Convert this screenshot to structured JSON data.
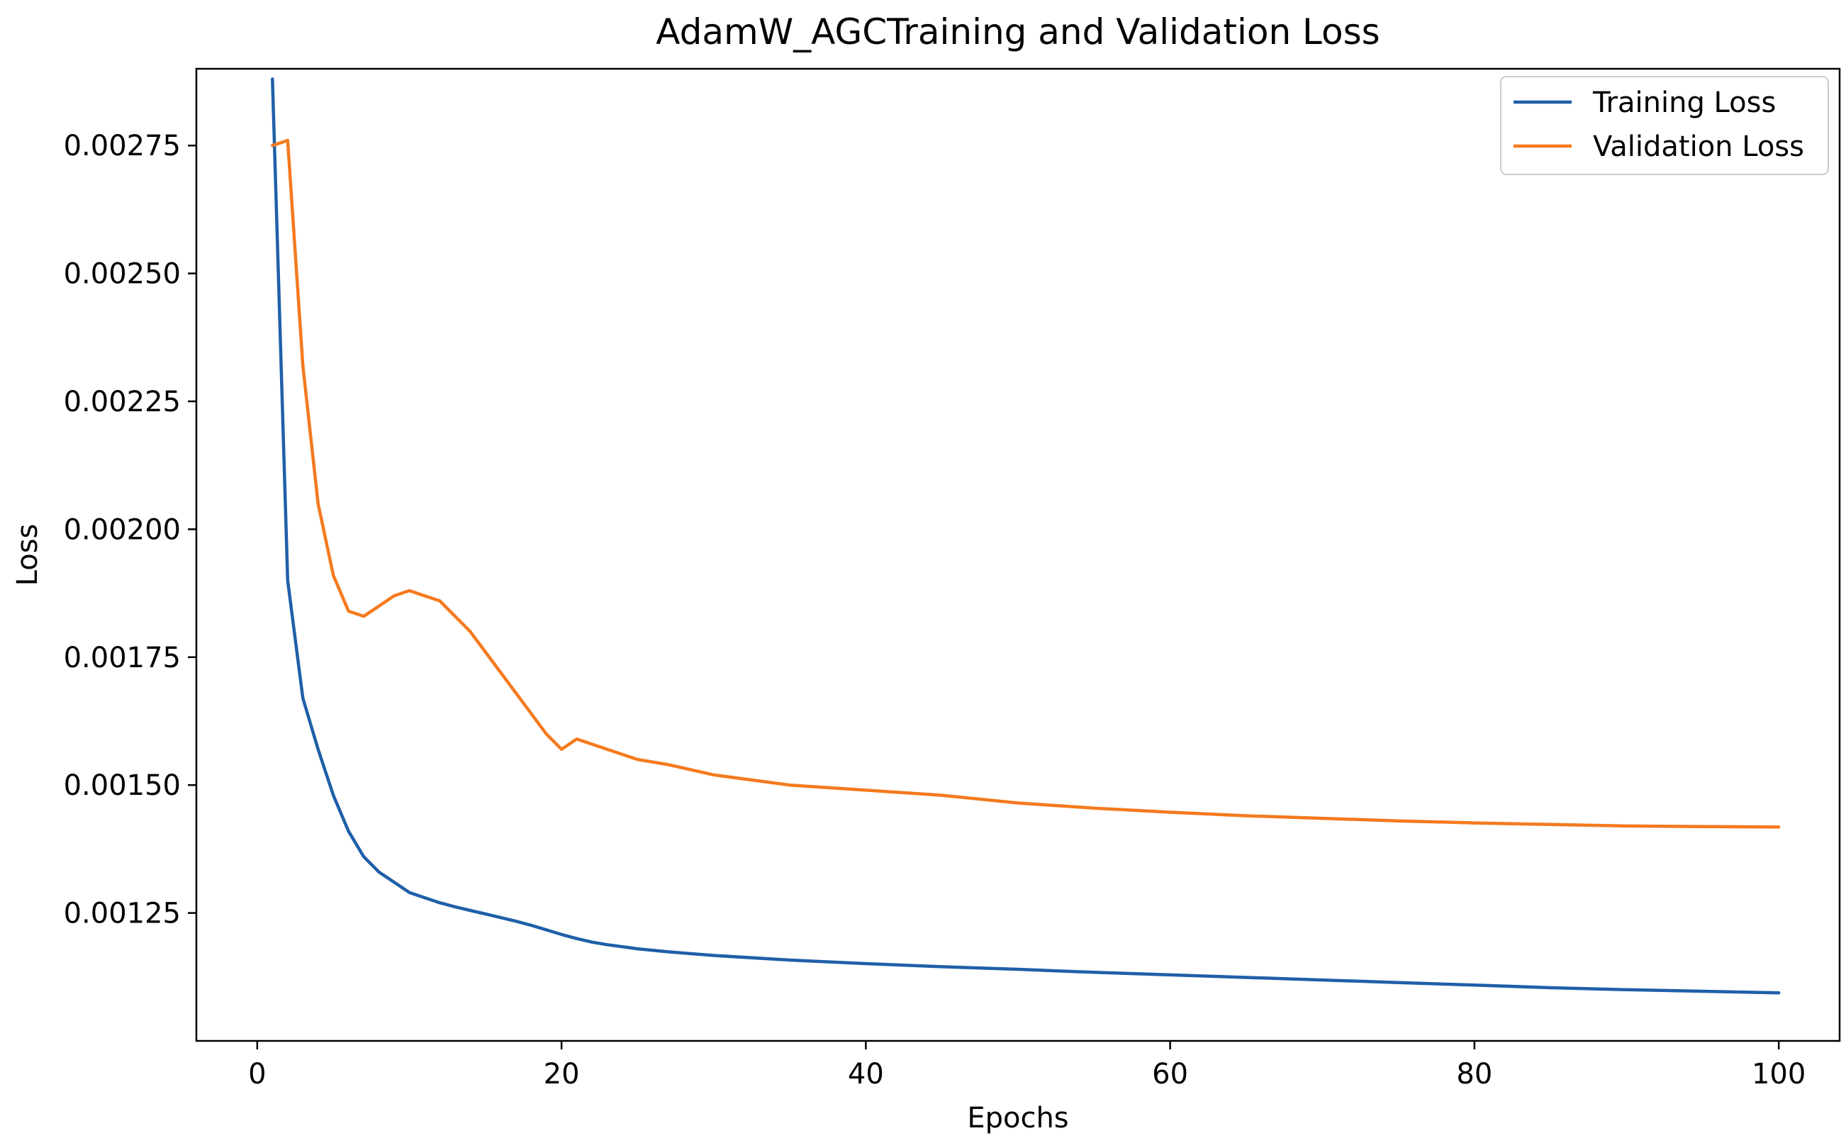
{
  "chart_data": {
    "type": "line",
    "title": "AdamW_AGCTraining and Validation Loss",
    "xlabel": "Epochs",
    "ylabel": "Loss",
    "xlim": [
      -4,
      104
    ],
    "ylim": [
      0.001,
      0.0029
    ],
    "xticks": [
      0,
      20,
      40,
      60,
      80,
      100
    ],
    "xtick_labels": [
      "0",
      "20",
      "40",
      "60",
      "80",
      "100"
    ],
    "yticks": [
      0.00125,
      0.0015,
      0.00175,
      0.002,
      0.00225,
      0.0025,
      0.00275
    ],
    "ytick_labels": [
      "0.00125",
      "0.00150",
      "0.00175",
      "0.00200",
      "0.00225",
      "0.00250",
      "0.00275"
    ],
    "grid": false,
    "legend_position": "top-right",
    "series": [
      {
        "name": "Training Loss",
        "color": "#1f5fa8",
        "x": [
          1,
          2,
          3,
          4,
          5,
          6,
          7,
          8,
          9,
          10,
          11,
          12,
          13,
          14,
          15,
          16,
          17,
          18,
          19,
          20,
          21,
          22,
          23,
          25,
          27,
          30,
          35,
          40,
          45,
          50,
          55,
          60,
          65,
          70,
          75,
          80,
          85,
          90,
          95,
          100
        ],
        "values": [
          0.00288,
          0.0019,
          0.00167,
          0.00157,
          0.00148,
          0.00141,
          0.00136,
          0.00133,
          0.00131,
          0.00129,
          0.00128,
          0.00127,
          0.001262,
          0.001255,
          0.001248,
          0.001241,
          0.001234,
          0.001226,
          0.001217,
          0.001208,
          0.0012,
          0.001193,
          0.001188,
          0.00118,
          0.001174,
          0.001167,
          0.001158,
          0.001151,
          0.001145,
          0.00114,
          0.001134,
          0.001129,
          0.001124,
          0.001119,
          0.001114,
          0.001109,
          0.001104,
          0.0011,
          0.001097,
          0.001094
        ]
      },
      {
        "name": "Validation Loss",
        "color": "#f57a1e",
        "x": [
          1,
          2,
          3,
          4,
          5,
          6,
          7,
          8,
          9,
          10,
          11,
          12,
          13,
          14,
          15,
          16,
          17,
          18,
          19,
          20,
          21,
          22,
          23,
          25,
          27,
          30,
          35,
          40,
          45,
          50,
          55,
          60,
          65,
          70,
          75,
          80,
          85,
          90,
          95,
          100
        ],
        "values": [
          0.00275,
          0.00276,
          0.00232,
          0.00205,
          0.00191,
          0.00184,
          0.00183,
          0.00185,
          0.00187,
          0.00188,
          0.00187,
          0.00186,
          0.00183,
          0.0018,
          0.00176,
          0.00172,
          0.00168,
          0.00164,
          0.0016,
          0.00157,
          0.00159,
          0.00158,
          0.00157,
          0.00155,
          0.00154,
          0.00152,
          0.0015,
          0.00149,
          0.00148,
          0.001465,
          0.001455,
          0.001447,
          0.00144,
          0.001435,
          0.00143,
          0.001426,
          0.001423,
          0.00142,
          0.001419,
          0.001418
        ]
      }
    ]
  }
}
